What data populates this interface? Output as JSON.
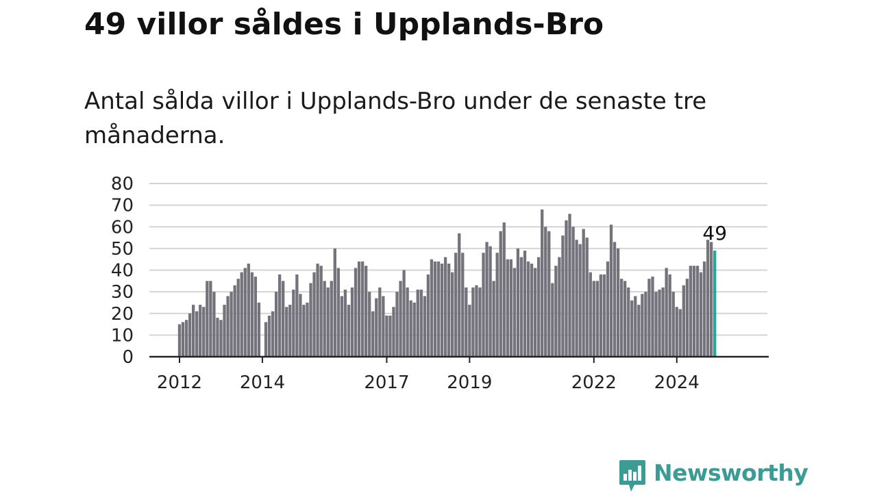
{
  "title": "49 villor såldes i Upplands-Bro",
  "subtitle": "Antal sålda villor i Upplands-Bro under de senaste tre månaderna.",
  "brand": {
    "name": "Newsworthy",
    "icon": "newsworthy-bar-chart-logo",
    "color": "#3a9c94"
  },
  "colors": {
    "bar": "#74727a",
    "highlight": "#2aa39a",
    "grid": "#d4d4d4",
    "axis": "#222222"
  },
  "chart_data": {
    "type": "bar",
    "title": "",
    "xlabel": "",
    "ylabel": "",
    "ylim": [
      0,
      80
    ],
    "yticks": [
      0,
      10,
      20,
      30,
      40,
      50,
      60,
      70,
      80
    ],
    "grid": true,
    "xtick_labels": [
      "2012",
      "2014",
      "2017",
      "2019",
      "2022",
      "2024"
    ],
    "xtick_indices": [
      0,
      24,
      60,
      84,
      120,
      144
    ],
    "highlight_label": "49",
    "values": [
      15,
      16,
      17,
      20,
      24,
      21,
      24,
      23,
      35,
      35,
      30,
      18,
      17,
      24,
      28,
      30,
      33,
      36,
      39,
      41,
      43,
      39,
      37,
      25,
      0,
      16,
      19,
      21,
      30,
      38,
      35,
      23,
      24,
      31,
      38,
      29,
      24,
      25,
      34,
      39,
      43,
      42,
      35,
      32,
      35,
      50,
      41,
      28,
      31,
      24,
      32,
      41,
      44,
      44,
      42,
      30,
      21,
      27,
      32,
      28,
      19,
      19,
      23,
      30,
      35,
      40,
      32,
      26,
      25,
      31,
      31,
      28,
      38,
      45,
      44,
      44,
      43,
      46,
      43,
      39,
      48,
      57,
      48,
      32,
      24,
      32,
      33,
      32,
      48,
      53,
      51,
      35,
      48,
      58,
      62,
      45,
      45,
      41,
      50,
      46,
      49,
      44,
      43,
      41,
      46,
      68,
      60,
      58,
      34,
      42,
      46,
      56,
      63,
      66,
      60,
      54,
      52,
      59,
      55,
      39,
      35,
      35,
      38,
      38,
      44,
      61,
      53,
      50,
      36,
      35,
      32,
      26,
      28,
      24,
      29,
      30,
      36,
      37,
      30,
      31,
      32,
      41,
      38,
      30,
      23,
      22,
      33,
      36,
      42,
      42,
      42,
      39,
      44,
      54,
      53,
      49
    ]
  }
}
